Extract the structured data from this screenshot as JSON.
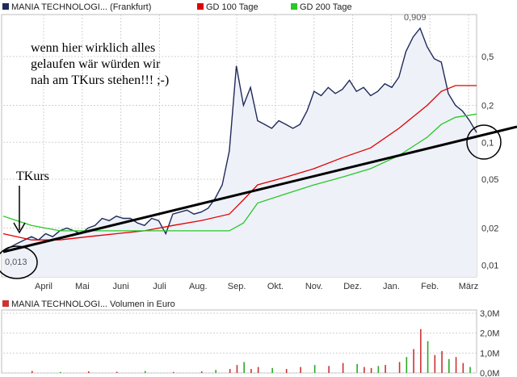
{
  "colors": {
    "price": "#1f2a5a",
    "price_fill": "#eef1f8",
    "gd100": "#e00000",
    "gd200": "#28c828",
    "trend": "#000000",
    "volume": "#cc3333",
    "volume_green": "#2aa82a",
    "grid": "#d0d0d0",
    "frame": "#bdbdbd"
  },
  "legend": {
    "price_name": "MANIA TECHNOLOGI... (Frankfurt)",
    "gd100": "GD 100 Tage",
    "gd200": "GD 200 Tage",
    "volume_name": "MANIA TECHNOLOGI... Volumen in Euro"
  },
  "annotations": {
    "comment_line1": "wenn hier wirklich alles",
    "comment_line2": "gelaufen wär würden wir",
    "comment_line3": "nah am TKurs stehen!!! ;-)",
    "tkurs": "TKurs",
    "low_label": "0,013",
    "high_label": "0,909"
  },
  "chart_data": [
    {
      "type": "line",
      "scale": "log",
      "x_ticks": [
        "April",
        "Mai",
        "Juni",
        "Juli",
        "Aug.",
        "Sep.",
        "Okt.",
        "Nov.",
        "Dez.",
        "Jan.",
        "Feb.",
        "März"
      ],
      "y_ticks": [
        0.01,
        0.02,
        0.05,
        0.1,
        0.2,
        0.5
      ],
      "y_tick_labels": [
        "0,01",
        "0,02",
        "0,05",
        "0,1",
        "0,2",
        "0,5"
      ],
      "ylim": [
        0.008,
        1.1
      ],
      "grid": true,
      "series": [
        {
          "name": "MANIA TECHNOLOGI... (Frankfurt)",
          "x": [
            0,
            5,
            10,
            15,
            20,
            25,
            30,
            35,
            40,
            45,
            50,
            55,
            60,
            65,
            70,
            75,
            80,
            85,
            90,
            95,
            100,
            105,
            110,
            115,
            120,
            125,
            130,
            135,
            140,
            145,
            150,
            155,
            160,
            165,
            170,
            175,
            180,
            185,
            190,
            195,
            200,
            205,
            210,
            215,
            220,
            225,
            230,
            235,
            240,
            245,
            250,
            255,
            260,
            265,
            270,
            275,
            280,
            285,
            290,
            295,
            300,
            305,
            310,
            315,
            320,
            325,
            330,
            335
          ],
          "values": [
            0.013,
            0.014,
            0.015,
            0.016,
            0.017,
            0.016,
            0.018,
            0.017,
            0.019,
            0.02,
            0.019,
            0.018,
            0.02,
            0.021,
            0.024,
            0.023,
            0.025,
            0.024,
            0.024,
            0.022,
            0.021,
            0.024,
            0.023,
            0.018,
            0.026,
            0.027,
            0.028,
            0.026,
            0.027,
            0.029,
            0.035,
            0.045,
            0.085,
            0.42,
            0.2,
            0.28,
            0.15,
            0.14,
            0.13,
            0.15,
            0.14,
            0.13,
            0.14,
            0.18,
            0.26,
            0.24,
            0.28,
            0.25,
            0.27,
            0.32,
            0.26,
            0.28,
            0.24,
            0.26,
            0.3,
            0.28,
            0.34,
            0.55,
            0.72,
            0.85,
            0.6,
            0.48,
            0.45,
            0.25,
            0.2,
            0.18,
            0.15,
            0.12
          ]
        },
        {
          "name": "GD 100 Tage",
          "x": [
            0,
            20,
            40,
            60,
            80,
            100,
            120,
            140,
            160,
            170,
            180,
            200,
            220,
            240,
            260,
            280,
            300,
            310,
            320,
            335
          ],
          "values": [
            0.018,
            0.016,
            0.016,
            0.017,
            0.018,
            0.019,
            0.021,
            0.023,
            0.026,
            0.034,
            0.045,
            0.052,
            0.061,
            0.075,
            0.09,
            0.13,
            0.2,
            0.26,
            0.29,
            0.29
          ]
        },
        {
          "name": "GD 200 Tage",
          "x": [
            0,
            20,
            40,
            60,
            80,
            100,
            120,
            140,
            160,
            170,
            180,
            200,
            220,
            240,
            260,
            280,
            300,
            310,
            320,
            335
          ],
          "values": [
            0.025,
            0.021,
            0.019,
            0.019,
            0.019,
            0.019,
            0.019,
            0.019,
            0.019,
            0.022,
            0.032,
            0.038,
            0.045,
            0.052,
            0.061,
            0.078,
            0.11,
            0.14,
            0.16,
            0.17
          ]
        }
      ]
    },
    {
      "type": "bar",
      "y_tick_labels": [
        "0,0M",
        "1,0M",
        "2,0M",
        "3,0M"
      ],
      "ylim": [
        0,
        3
      ],
      "series": [
        {
          "name": "MANIA TECHNOLOGI... Volumen in Euro",
          "x": [
            20,
            40,
            60,
            80,
            100,
            120,
            140,
            150,
            160,
            165,
            170,
            175,
            180,
            190,
            200,
            210,
            220,
            230,
            240,
            250,
            255,
            260,
            265,
            270,
            280,
            285,
            290,
            295,
            300,
            305,
            310,
            315,
            320,
            325,
            330
          ],
          "values": [
            0.1,
            0.05,
            0.08,
            0.06,
            0.1,
            0.05,
            0.08,
            0.15,
            0.2,
            0.4,
            0.55,
            0.2,
            0.3,
            0.25,
            0.2,
            0.3,
            0.4,
            0.35,
            0.5,
            0.45,
            0.3,
            0.25,
            0.35,
            0.4,
            0.55,
            0.8,
            1.2,
            2.2,
            1.6,
            0.9,
            1.1,
            0.7,
            0.8,
            0.5,
            0.3
          ]
        }
      ]
    }
  ]
}
